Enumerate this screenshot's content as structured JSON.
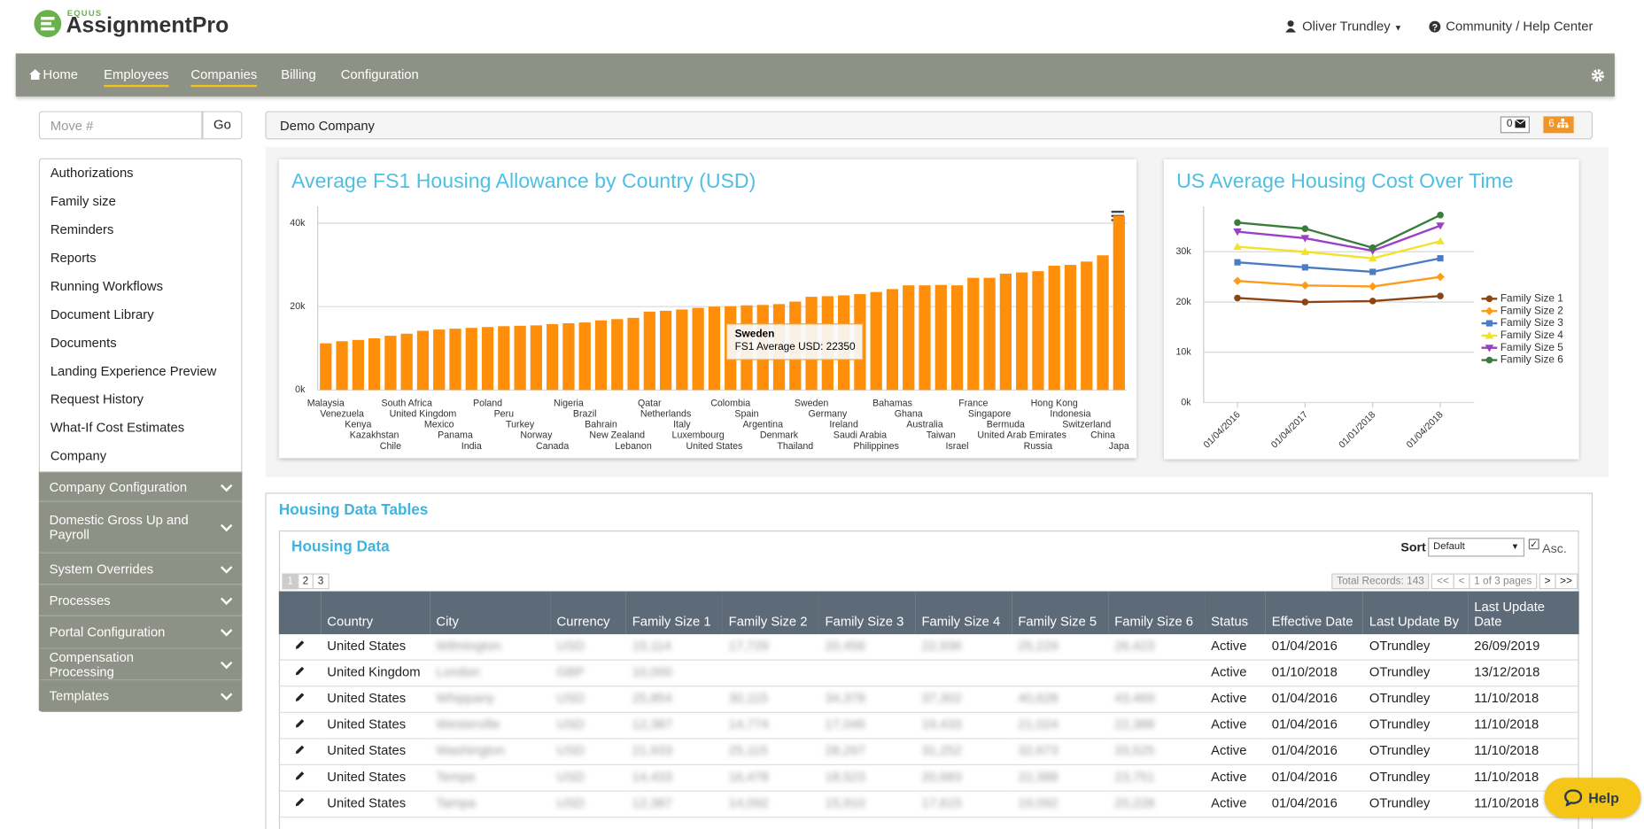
{
  "header": {
    "brand_small": "EQUUS",
    "brand": "AssignmentPro",
    "user": "Oliver Trundley",
    "help_center": "Community / Help Center"
  },
  "nav": [
    "Home",
    "Employees",
    "Companies",
    "Billing",
    "Configuration"
  ],
  "move": {
    "placeholder": "Move #",
    "button": "Go"
  },
  "sidebar": {
    "links": [
      "Authorizations",
      "Family size",
      "Reminders",
      "Reports",
      "Running Workflows",
      "Document Library",
      "Documents",
      "Landing Experience Preview",
      "Request History",
      "What-If Cost Estimates",
      "Company"
    ],
    "sections": [
      "Company Configuration",
      "Domestic Gross Up and Payroll",
      "System Overrides",
      "Processes",
      "Portal Configuration",
      "Compensation Processing",
      "Templates"
    ]
  },
  "company": {
    "name": "Demo Company",
    "messages": 0,
    "tasks": 6
  },
  "chart_data": [
    {
      "type": "bar",
      "title": "Average FS1 Housing Allowance by Country (USD)",
      "categories": [
        "Malaysia",
        "Venezuela",
        "Kenya",
        "Kazakhstan",
        "Chile",
        "South Africa",
        "United Kingdom",
        "Mexico",
        "Panama",
        "India",
        "Poland",
        "Peru",
        "Turkey",
        "Norway",
        "Canada",
        "Nigeria",
        "Brazil",
        "Bahrain",
        "New Zealand",
        "Lebanon",
        "Qatar",
        "Netherlands",
        "Italy",
        "Luxembourg",
        "United States",
        "Colombia",
        "Spain",
        "Argentina",
        "Denmark",
        "Thailand",
        "Sweden",
        "Germany",
        "Ireland",
        "Saudi Arabia",
        "Philippines",
        "Bahamas",
        "Ghana",
        "Australia",
        "Taiwan",
        "Israel",
        "France",
        "Singapore",
        "Bermuda",
        "United Arab Emirates",
        "Russia",
        "Hong Kong",
        "Indonesia",
        "Switzerland",
        "China",
        "Japa"
      ],
      "values": [
        11200,
        11700,
        12000,
        12400,
        13000,
        13500,
        14200,
        14500,
        14700,
        14900,
        15100,
        15300,
        15400,
        15500,
        15800,
        16000,
        16200,
        16700,
        17000,
        17300,
        18800,
        19000,
        19300,
        19700,
        20000,
        20100,
        20300,
        20400,
        20600,
        21200,
        22350,
        22500,
        22700,
        23000,
        23500,
        24200,
        25100,
        25100,
        25200,
        25100,
        26900,
        26900,
        27900,
        28200,
        28500,
        29800,
        30000,
        30800,
        32300,
        41800
      ],
      "color": "#ff8f0a",
      "ylim": [
        0,
        44000
      ],
      "yticks": [
        {
          "value": 0,
          "label": "0k"
        },
        {
          "value": 20000,
          "label": "20k"
        },
        {
          "value": 40000,
          "label": "40k"
        }
      ],
      "grid": true,
      "tooltip": {
        "title": "Sweden",
        "text": "FS1 Average USD: 22350"
      }
    },
    {
      "type": "line",
      "title": "US Average Housing Cost Over Time",
      "categories": [
        "01/04/2016",
        "01/04/2017",
        "01/01/2018",
        "01/04/2018"
      ],
      "series": [
        {
          "name": "Family Size 1",
          "color": "#8b4513",
          "marker": "circle",
          "values": [
            20800,
            20000,
            20200,
            21200
          ]
        },
        {
          "name": "Family Size 2",
          "color": "#ff9b1a",
          "marker": "diamond",
          "values": [
            24200,
            23300,
            23100,
            25000
          ]
        },
        {
          "name": "Family Size 3",
          "color": "#4a7cc4",
          "marker": "square",
          "values": [
            27900,
            26900,
            26000,
            28700
          ]
        },
        {
          "name": "Family Size 4",
          "color": "#f2e22a",
          "marker": "triangle",
          "values": [
            31000,
            30000,
            28700,
            32100
          ]
        },
        {
          "name": "Family Size 5",
          "color": "#9b3fc7",
          "marker": "triangle-down",
          "values": [
            34000,
            32700,
            30200,
            35200
          ]
        },
        {
          "name": "Family Size 6",
          "color": "#3a7d3a",
          "marker": "circle",
          "values": [
            35800,
            34600,
            30800,
            37300
          ]
        }
      ],
      "ylim": [
        0,
        39000
      ],
      "yticks": [
        {
          "value": 0,
          "label": "0k"
        },
        {
          "value": 10000,
          "label": "10k"
        },
        {
          "value": 20000,
          "label": "20k"
        },
        {
          "value": 30000,
          "label": "30k"
        }
      ],
      "grid": true,
      "legend": "right"
    }
  ],
  "housing": {
    "section_title": "Housing Data Tables",
    "title": "Housing Data",
    "sort_label": "Sort",
    "sort_value": "Default",
    "asc": "Asc.",
    "pages": [
      1,
      2,
      3
    ],
    "total": "Total Records: 143",
    "pager": [
      "<<",
      "<",
      "1 of 3 pages",
      ">",
      ">>"
    ],
    "columns": [
      "Country",
      "City",
      "Currency",
      "Family Size 1",
      "Family Size 2",
      "Family Size 3",
      "Family Size 4",
      "Family Size 5",
      "Family Size 6",
      "Status",
      "Effective Date",
      "Last Update By",
      "Last Update Date"
    ],
    "rows": [
      [
        "United States",
        "Wilmington",
        "USD",
        "15,114",
        "17,729",
        "20,456",
        "22,936",
        "25,229",
        "26,423",
        "Active",
        "01/04/2016",
        "OTrundley",
        "26/09/2019"
      ],
      [
        "United Kingdom",
        "London",
        "GBP",
        "10,000",
        null,
        null,
        null,
        null,
        null,
        "Active",
        "01/10/2018",
        "OTrundley",
        "13/12/2018"
      ],
      [
        "United States",
        "Whippany",
        "USD",
        "25,854",
        "30,115",
        "34,378",
        "37,302",
        "40,628",
        "43,469",
        "Active",
        "01/04/2016",
        "OTrundley",
        "11/10/2018"
      ],
      [
        "United States",
        "Westerville",
        "USD",
        "12,387",
        "14,774",
        "17,046",
        "19,433",
        "21,024",
        "22,388",
        "Active",
        "01/04/2016",
        "OTrundley",
        "11/10/2018"
      ],
      [
        "United States",
        "Washington",
        "USD",
        "21,933",
        "25,115",
        "28,297",
        "31,252",
        "32,673",
        "33,525",
        "Active",
        "01/04/2016",
        "OTrundley",
        "11/10/2018"
      ],
      [
        "United States",
        "Tempe",
        "USD",
        "14,433",
        "16,478",
        "18,523",
        "20,683",
        "22,388",
        "23,751",
        "Active",
        "01/04/2016",
        "OTrundley",
        "11/10/2018"
      ],
      [
        "United States",
        "Tampa",
        "USD",
        "12,387",
        "14,092",
        "15,910",
        "17,615",
        "19,092",
        "20,228",
        "Active",
        "01/04/2016",
        "OTrundley",
        "11/10/2018"
      ]
    ]
  },
  "help": "Help"
}
